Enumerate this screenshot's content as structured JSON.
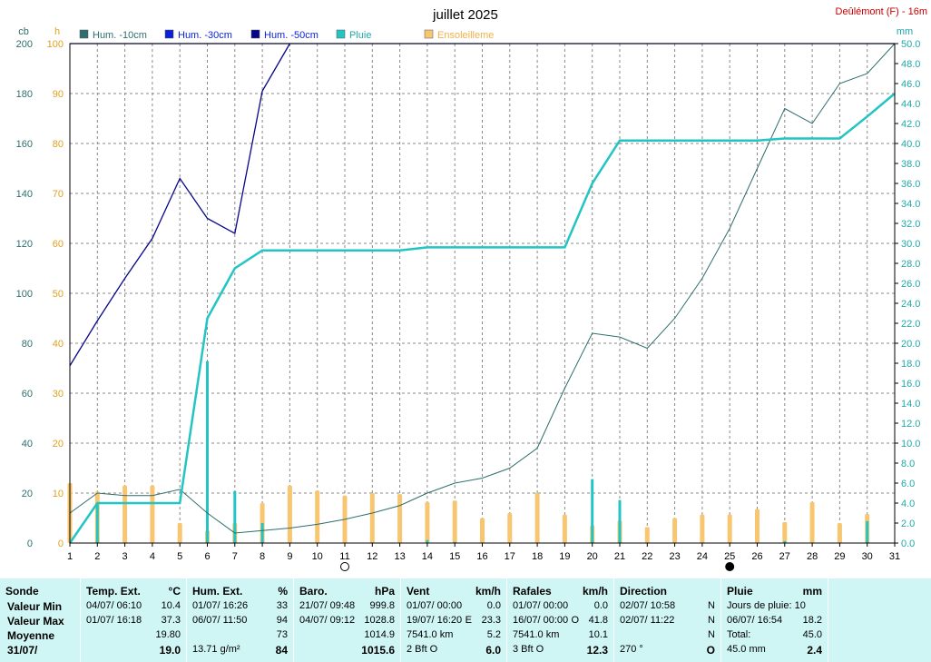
{
  "header": {
    "title": "juillet 2025",
    "station": "Deûlémont (F) - 16m",
    "left_unit_cb": "cb",
    "left_unit_h": "h",
    "right_unit_mm": "mm"
  },
  "legend": [
    {
      "label": "Hum. -10cm",
      "color": "#2e6e6e"
    },
    {
      "label": "Hum. -30cm",
      "color": "#0a1fd6"
    },
    {
      "label": "Hum. -50cm",
      "color": "#06068a"
    },
    {
      "label": "Pluie",
      "color": "#22c4c4"
    },
    {
      "label": "Ensoleilleme",
      "color": "#f8c670"
    }
  ],
  "chart_data": {
    "type": "line",
    "title": "juillet 2025",
    "x": [
      1,
      2,
      3,
      4,
      5,
      6,
      7,
      8,
      9,
      10,
      11,
      12,
      13,
      14,
      15,
      16,
      17,
      18,
      19,
      20,
      21,
      22,
      23,
      24,
      25,
      26,
      27,
      28,
      29,
      30,
      31
    ],
    "xlim": [
      1,
      31
    ],
    "y_left_cb": {
      "label": "cb",
      "ylim": [
        0,
        200
      ],
      "ticks": [
        0,
        20,
        40,
        60,
        80,
        100,
        120,
        140,
        160,
        180,
        200
      ]
    },
    "y_left_h": {
      "label": "h",
      "ylim": [
        0,
        100
      ],
      "ticks": [
        0,
        10,
        20,
        30,
        40,
        50,
        60,
        70,
        80,
        90,
        100
      ]
    },
    "y_right_mm": {
      "label": "mm",
      "ylim": [
        0,
        50
      ],
      "ticks": [
        "0.0",
        "2.0",
        "4.0",
        "6.0",
        "8.0",
        "10.0",
        "12.0",
        "14.0",
        "16.0",
        "18.0",
        "20.0",
        "22.0",
        "24.0",
        "26.0",
        "28.0",
        "30.0",
        "32.0",
        "34.0",
        "36.0",
        "38.0",
        "40.0",
        "42.0",
        "44.0",
        "46.0",
        "48.0",
        "50.0"
      ]
    },
    "grid": true,
    "series": [
      {
        "name": "Hum. -10cm",
        "axis": "cb",
        "color": "#2e6e6e",
        "x": [
          1,
          2,
          3,
          4,
          5,
          6,
          7,
          8,
          9,
          10,
          11,
          12,
          13,
          14,
          15,
          16,
          17,
          18,
          19,
          20,
          21,
          22,
          23,
          24,
          25,
          26,
          27,
          28,
          29,
          30,
          31
        ],
        "values": [
          12,
          20,
          19,
          19,
          21.5,
          12,
          4,
          5,
          6,
          7.5,
          9.5,
          12,
          15,
          20,
          24,
          26,
          30,
          38,
          62,
          84,
          82.5,
          78,
          90,
          106,
          126,
          150,
          174,
          168,
          184,
          188,
          200
        ]
      },
      {
        "name": "Hum. -30cm",
        "axis": "cb",
        "color": "#0a1fd6",
        "x": [
          1,
          2,
          3,
          4,
          5,
          6,
          7,
          8,
          9,
          10,
          11,
          12,
          13,
          14,
          15,
          16,
          17,
          18,
          19,
          20,
          21,
          22,
          23,
          24,
          25,
          26,
          27,
          28,
          29,
          30,
          31
        ],
        "values": [
          200,
          200,
          200,
          200,
          200,
          200,
          200,
          200,
          200,
          200,
          200,
          200,
          200,
          200,
          200,
          200,
          200,
          200,
          200,
          200,
          200,
          200,
          200,
          200,
          200,
          200,
          200,
          200,
          200,
          200,
          200
        ]
      },
      {
        "name": "Hum. -50cm",
        "axis": "cb",
        "color": "#06068a",
        "x": [
          1,
          2,
          3,
          4,
          5,
          6,
          7,
          8,
          9
        ],
        "values": [
          71,
          89,
          106,
          122,
          146,
          130,
          124,
          181,
          200
        ]
      },
      {
        "name": "Pluie",
        "axis": "mm",
        "color": "#22c4c4",
        "x": [
          1,
          2,
          3,
          4,
          5,
          6,
          7,
          8,
          9,
          10,
          11,
          12,
          13,
          14,
          15,
          16,
          17,
          18,
          19,
          20,
          21,
          22,
          23,
          24,
          25,
          26,
          27,
          28,
          29,
          30,
          31
        ],
        "values": [
          0,
          4,
          4,
          4,
          4,
          22.5,
          27.5,
          29.3,
          29.3,
          29.3,
          29.3,
          29.3,
          29.3,
          29.6,
          29.6,
          29.6,
          29.6,
          29.6,
          29.6,
          36,
          40.3,
          40.3,
          40.3,
          40.3,
          40.3,
          40.3,
          40.5,
          40.5,
          40.5,
          42.7,
          45
        ]
      }
    ],
    "bars": [
      {
        "name": "Pluie journalière",
        "axis": "mm",
        "color": "#22c4c4",
        "x": [
          2,
          6,
          7,
          8,
          14,
          15,
          20,
          21,
          27,
          30
        ],
        "values": [
          4,
          18.2,
          5.2,
          2,
          0.3,
          0.1,
          6.4,
          4.3,
          0.2,
          2.2
        ]
      },
      {
        "name": "Ensoleilleme",
        "axis": "h",
        "color": "#f8c670",
        "x": [
          1,
          2,
          3,
          4,
          5,
          6,
          7,
          8,
          9,
          10,
          11,
          12,
          13,
          14,
          15,
          16,
          17,
          18,
          19,
          20,
          21,
          22,
          23,
          24,
          25,
          26,
          27,
          28,
          29,
          30
        ],
        "values": [
          12,
          10.3,
          11.5,
          11.5,
          4,
          2.5,
          4,
          8,
          11.5,
          10.5,
          9.5,
          10,
          9.8,
          8.2,
          8.5,
          5,
          6,
          10,
          5.7,
          3.5,
          4.5,
          3.2,
          5,
          5.7,
          5.7,
          6.8,
          4.2,
          8.2,
          4,
          5.8
        ]
      }
    ],
    "markers": [
      {
        "x": 11,
        "symbol": "open-circle"
      },
      {
        "x": 25,
        "symbol": "filled-circle"
      }
    ]
  },
  "stats": {
    "sonde": {
      "title": "Sonde",
      "rows": [
        "Valeur Min",
        "Valeur Max",
        "Moyenne",
        "31/07/"
      ]
    },
    "temp": {
      "title": "Temp. Ext.",
      "unit": "°C",
      "rows": [
        [
          "04/07/  06:10",
          "10.4"
        ],
        [
          "01/07/  16:18",
          "37.3"
        ],
        [
          "",
          "19.80"
        ],
        [
          "",
          "19.0"
        ]
      ]
    },
    "hum": {
      "title": "Hum. Ext.",
      "unit": "%",
      "rows": [
        [
          "01/07/  16:26",
          "33"
        ],
        [
          "06/07/  11:50",
          "94"
        ],
        [
          "",
          "73"
        ],
        [
          "13.71 g/m²",
          "84"
        ]
      ]
    },
    "baro": {
      "title": "Baro.",
      "unit": "hPa",
      "rows": [
        [
          "21/07/  09:48",
          "999.8"
        ],
        [
          "04/07/  09:12",
          "1028.8"
        ],
        [
          "",
          "1014.9"
        ],
        [
          "",
          "1015.6"
        ]
      ]
    },
    "vent": {
      "title": "Vent",
      "unit": "km/h",
      "rows": [
        [
          "01/07/  00:00",
          "",
          "0.0"
        ],
        [
          "19/07/  16:20",
          "E",
          "23.3"
        ],
        [
          "7541.0 km",
          "",
          "5.2"
        ],
        [
          "2 Bft O",
          "",
          "6.0"
        ]
      ]
    },
    "rafales": {
      "title": "Rafales",
      "unit": "km/h",
      "rows": [
        [
          "01/07/  00:00",
          "",
          "0.0"
        ],
        [
          "16/07/  00:00",
          "O",
          "41.8"
        ],
        [
          "7541.0 km",
          "",
          "10.1"
        ],
        [
          "3 Bft O",
          "",
          "12.3"
        ]
      ]
    },
    "direction": {
      "title": "Direction",
      "unit": "",
      "rows": [
        [
          "02/07/  10:58",
          "N"
        ],
        [
          "02/07/  11:22",
          "N"
        ],
        [
          "",
          "N"
        ],
        [
          "270 °",
          "O"
        ]
      ]
    },
    "pluie": {
      "title": "Pluie",
      "unit": "mm",
      "rows": [
        [
          "Jours de pluie: 10",
          ""
        ],
        [
          "06/07/  16:54",
          "18.2"
        ],
        [
          "Total:",
          "45.0"
        ],
        [
          "45.0 mm",
          "2.4"
        ]
      ]
    }
  }
}
